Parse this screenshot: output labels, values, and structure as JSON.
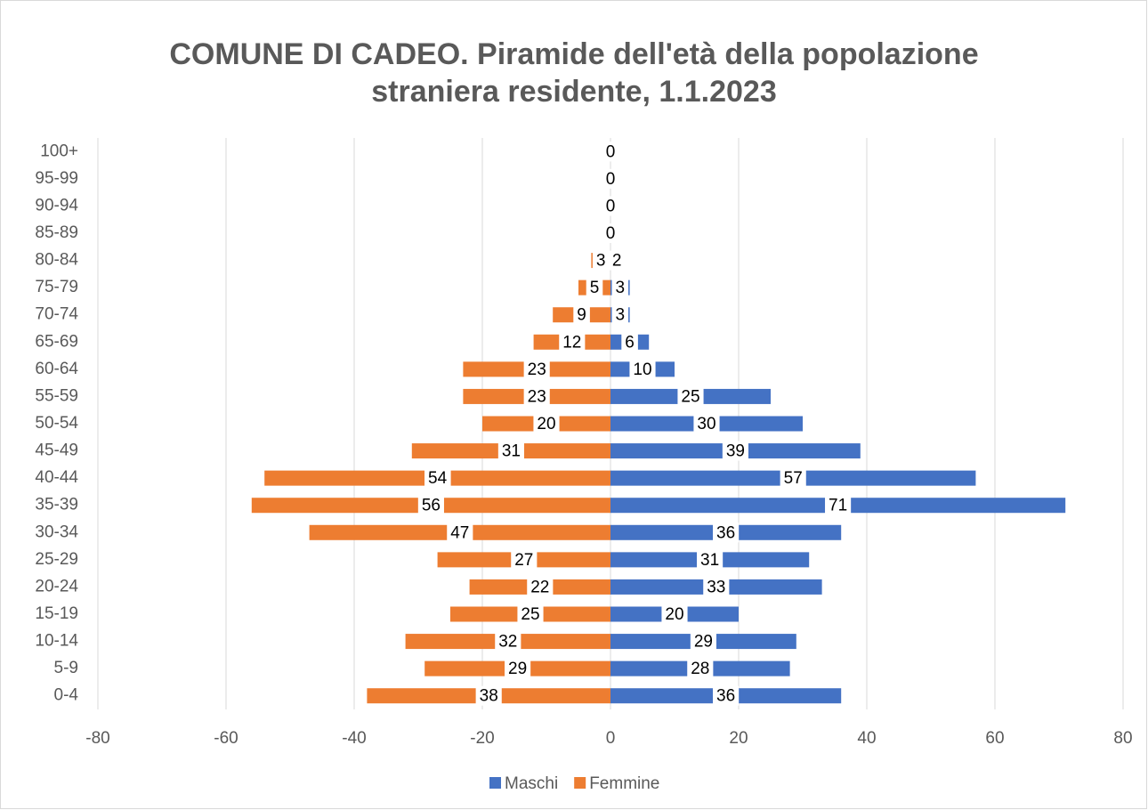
{
  "chart_data": {
    "type": "pyramid",
    "title": "COMUNE DI CADEO. Piramide dell'età della popolazione straniera residente, 1.1.2023",
    "categories": [
      "0-4",
      "5-9",
      "10-14",
      "15-19",
      "20-24",
      "25-29",
      "30-34",
      "35-39",
      "40-44",
      "45-49",
      "50-54",
      "55-59",
      "60-64",
      "65-69",
      "70-74",
      "75-79",
      "80-84",
      "85-89",
      "90-94",
      "95-99",
      "100+"
    ],
    "series": [
      {
        "name": "Maschi",
        "color": "#4472c4",
        "values": [
          36,
          28,
          29,
          20,
          33,
          31,
          36,
          71,
          57,
          39,
          30,
          25,
          10,
          6,
          3,
          3,
          2,
          0,
          0,
          0,
          0
        ]
      },
      {
        "name": "Femmine",
        "color": "#ed7d31",
        "values": [
          -38,
          -29,
          -32,
          -25,
          -22,
          -27,
          -47,
          -56,
          -54,
          -31,
          -20,
          -23,
          -23,
          -12,
          -9,
          -5,
          -3,
          0,
          0,
          0,
          0
        ],
        "value_labels": [
          "38",
          "29",
          "32",
          "25",
          "22",
          "27",
          "47",
          "56",
          "54",
          "31",
          "20",
          "23",
          "23",
          "12",
          "9",
          "5",
          "3",
          "0",
          "0",
          "0",
          "0"
        ]
      }
    ],
    "xlim": [
      -80,
      80
    ],
    "xticks": [
      -80,
      -60,
      -40,
      -20,
      0,
      20,
      40,
      60,
      80
    ],
    "grid": true,
    "legend": "bottom"
  }
}
